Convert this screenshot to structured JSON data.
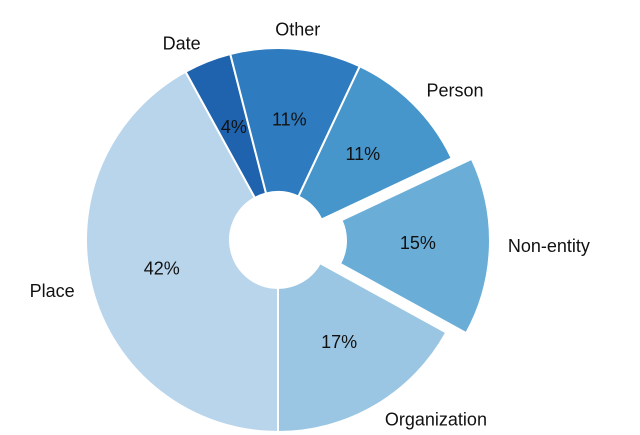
{
  "chart_data": {
    "type": "pie",
    "categories": [
      "Date",
      "Other",
      "Person",
      "Non-entity",
      "Organization",
      "Place"
    ],
    "values": [
      4,
      11,
      11,
      15,
      17,
      42
    ],
    "value_labels": [
      "4%",
      "11%",
      "11%",
      "15%",
      "17%",
      "42%"
    ],
    "colors": [
      "#1f63ae",
      "#2e7bbf",
      "#4695cb",
      "#6aaed8",
      "#9ac6e3",
      "#b9d5ec"
    ]
  }
}
